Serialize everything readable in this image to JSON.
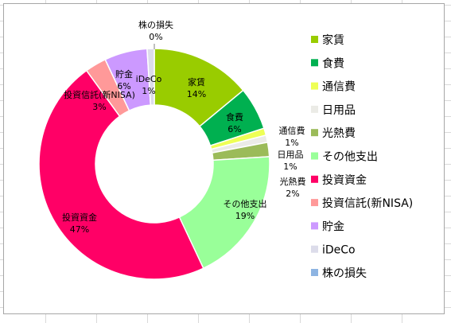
{
  "chart_data": {
    "type": "pie",
    "donut": true,
    "slices": [
      {
        "label": "家賃",
        "value": 14,
        "pct_label": "14%",
        "color": "#99cc00"
      },
      {
        "label": "食費",
        "value": 6,
        "pct_label": "6%",
        "color": "#00b050"
      },
      {
        "label": "通信費",
        "value": 1,
        "pct_label": "1%",
        "color": "#eeff55"
      },
      {
        "label": "日用品",
        "value": 1,
        "pct_label": "1%",
        "color": "#ebebe6"
      },
      {
        "label": "光熱費",
        "value": 2,
        "pct_label": "2%",
        "color": "#9bbb59"
      },
      {
        "label": "その他支出",
        "value": 19,
        "pct_label": "19%",
        "color": "#99ff99"
      },
      {
        "label": "投資資金",
        "value": 47,
        "pct_label": "47%",
        "color": "#ff0066"
      },
      {
        "label": "投資信託(新NISA)",
        "value": 3,
        "pct_label": "3%",
        "color": "#ff9999"
      },
      {
        "label": "貯金",
        "value": 6,
        "pct_label": "6%",
        "color": "#cc99ff"
      },
      {
        "label": "iDeCo",
        "value": 1,
        "pct_label": "1%",
        "color": "#dcdcea"
      },
      {
        "label": "株の損失",
        "value": 0,
        "pct_label": "0%",
        "color": "#8db4e2"
      }
    ],
    "legend_position": "right"
  }
}
